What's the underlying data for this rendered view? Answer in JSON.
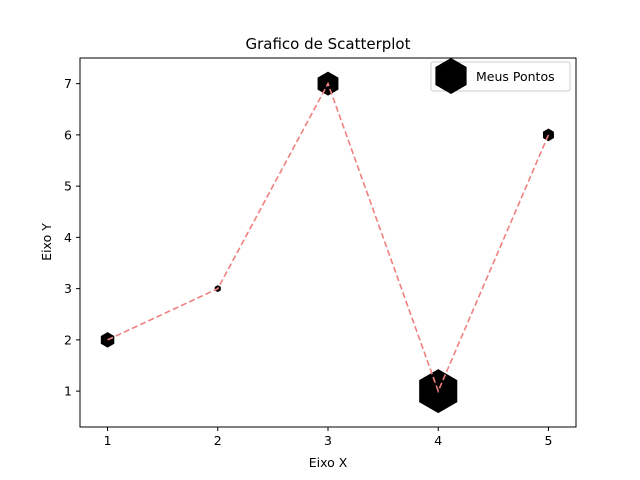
{
  "chart_data": {
    "type": "scatter",
    "title": "Grafico de Scatterplot",
    "xlabel": "Eixo X",
    "ylabel": "Eixo Y",
    "xlim": [
      0.75,
      5.25
    ],
    "ylim": [
      0.3,
      7.5
    ],
    "xticks": [
      1,
      2,
      3,
      4,
      5
    ],
    "yticks": [
      1,
      2,
      3,
      4,
      5,
      6,
      7
    ],
    "grid": false,
    "legend_position": "top-right",
    "series": [
      {
        "name": "Meus Pontos",
        "marker": "hexagon",
        "marker_color": "#000000",
        "x": [
          1,
          2,
          3,
          4,
          5
        ],
        "y": [
          2,
          3,
          7,
          1,
          6
        ],
        "sizes": [
          2,
          0.5,
          3.5,
          7,
          1.5
        ],
        "line": {
          "style": "dashed",
          "color": "#f08080"
        }
      }
    ]
  }
}
